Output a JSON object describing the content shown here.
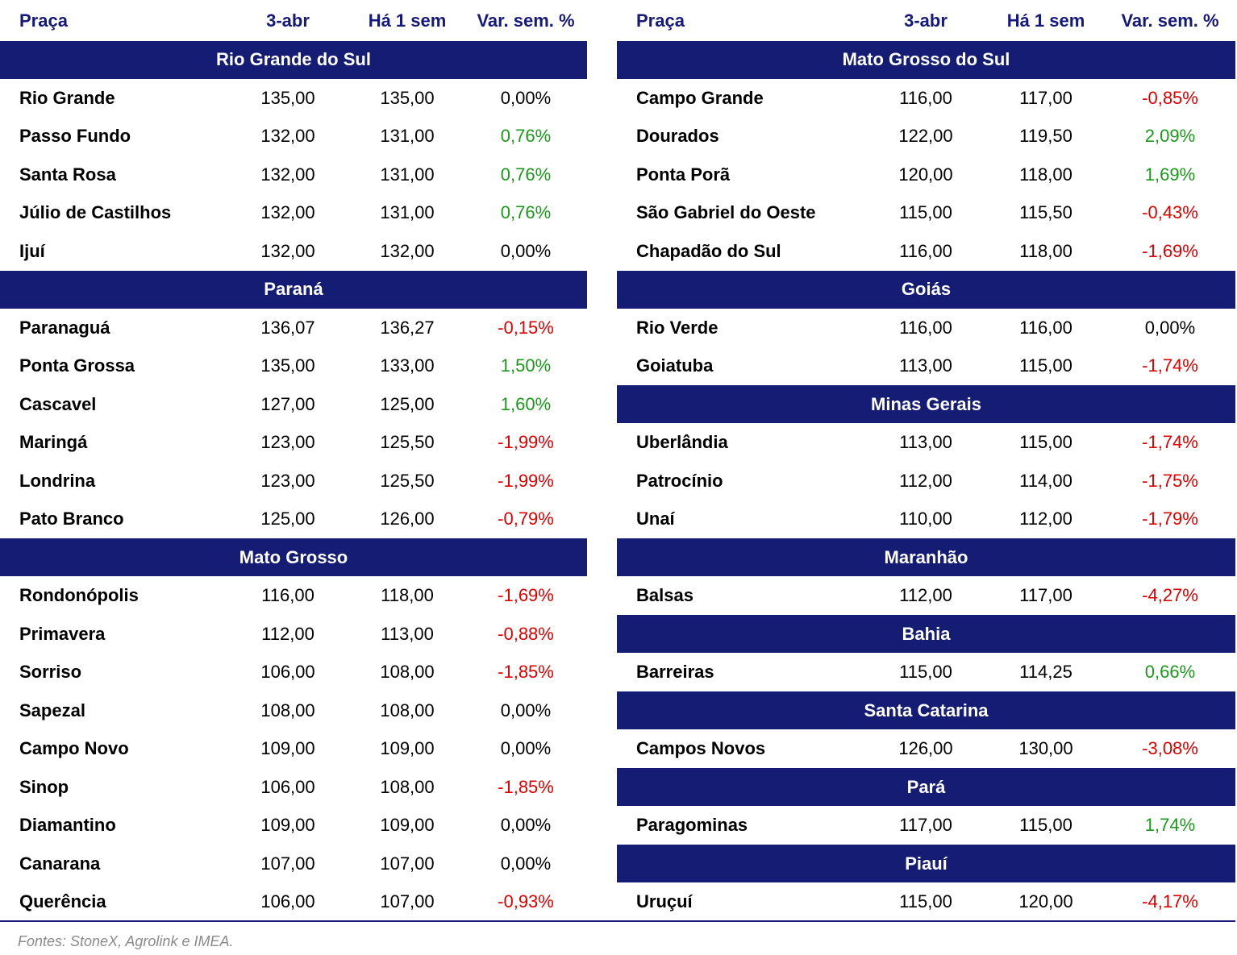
{
  "tables": [
    {
      "header": [
        "Praça",
        "3-abr",
        "Há 1 sem",
        "Var. sem. %"
      ],
      "groups": [
        {
          "title": "Rio Grande do Sul",
          "rows": [
            [
              "Rio Grande",
              "135,00",
              "135,00",
              "0,00%"
            ],
            [
              "Passo Fundo",
              "132,00",
              "131,00",
              "0,76%"
            ],
            [
              "Santa Rosa",
              "132,00",
              "131,00",
              "0,76%"
            ],
            [
              "Júlio de Castilhos",
              "132,00",
              "131,00",
              "0,76%"
            ],
            [
              "Ijuí",
              "132,00",
              "132,00",
              "0,00%"
            ]
          ]
        },
        {
          "title": "Paraná",
          "rows": [
            [
              "Paranaguá",
              "136,07",
              "136,27",
              "-0,15%"
            ],
            [
              "Ponta Grossa",
              "135,00",
              "133,00",
              "1,50%"
            ],
            [
              "Cascavel",
              "127,00",
              "125,00",
              "1,60%"
            ],
            [
              "Maringá",
              "123,00",
              "125,50",
              "-1,99%"
            ],
            [
              "Londrina",
              "123,00",
              "125,50",
              "-1,99%"
            ],
            [
              "Pato Branco",
              "125,00",
              "126,00",
              "-0,79%"
            ]
          ]
        },
        {
          "title": "Mato Grosso",
          "rows": [
            [
              "Rondonópolis",
              "116,00",
              "118,00",
              "-1,69%"
            ],
            [
              "Primavera",
              "112,00",
              "113,00",
              "-0,88%"
            ],
            [
              "Sorriso",
              "106,00",
              "108,00",
              "-1,85%"
            ],
            [
              "Sapezal",
              "108,00",
              "108,00",
              "0,00%"
            ],
            [
              "Campo Novo",
              "109,00",
              "109,00",
              "0,00%"
            ],
            [
              "Sinop",
              "106,00",
              "108,00",
              "-1,85%"
            ],
            [
              "Diamantino",
              "109,00",
              "109,00",
              "0,00%"
            ],
            [
              "Canarana",
              "107,00",
              "107,00",
              "0,00%"
            ],
            [
              "Querência",
              "106,00",
              "107,00",
              "-0,93%"
            ]
          ]
        }
      ]
    },
    {
      "header": [
        "Praça",
        "3-abr",
        "Há 1 sem",
        "Var. sem. %"
      ],
      "groups": [
        {
          "title": "Mato Grosso do Sul",
          "rows": [
            [
              "Campo Grande",
              "116,00",
              "117,00",
              "-0,85%"
            ],
            [
              "Dourados",
              "122,00",
              "119,50",
              "2,09%"
            ],
            [
              "Ponta Porã",
              "120,00",
              "118,00",
              "1,69%"
            ],
            [
              "São Gabriel do Oeste",
              "115,00",
              "115,50",
              "-0,43%"
            ],
            [
              "Chapadão do Sul",
              "116,00",
              "118,00",
              "-1,69%"
            ]
          ]
        },
        {
          "title": "Goiás",
          "rows": [
            [
              "Rio Verde",
              "116,00",
              "116,00",
              "0,00%"
            ],
            [
              "Goiatuba",
              "113,00",
              "115,00",
              "-1,74%"
            ]
          ]
        },
        {
          "title": "Minas Gerais",
          "rows": [
            [
              "Uberlândia",
              "113,00",
              "115,00",
              "-1,74%"
            ],
            [
              "Patrocínio",
              "112,00",
              "114,00",
              "-1,75%"
            ],
            [
              "Unaí",
              "110,00",
              "112,00",
              "-1,79%"
            ]
          ]
        },
        {
          "title": "Maranhão",
          "rows": [
            [
              "Balsas",
              "112,00",
              "117,00",
              "-4,27%"
            ]
          ]
        },
        {
          "title": "Bahia",
          "rows": [
            [
              "Barreiras",
              "115,00",
              "114,25",
              "0,66%"
            ]
          ]
        },
        {
          "title": "Santa Catarina",
          "rows": [
            [
              "Campos Novos",
              "126,00",
              "130,00",
              "-3,08%"
            ]
          ]
        },
        {
          "title": "Pará",
          "rows": [
            [
              "Paragominas",
              "117,00",
              "115,00",
              "1,74%"
            ]
          ]
        },
        {
          "title": "Piauí",
          "rows": [
            [
              "Uruçuí",
              "115,00",
              "120,00",
              "-4,17%"
            ]
          ]
        }
      ]
    }
  ],
  "footer": "Fontes: StoneX, Agrolink e IMEA."
}
